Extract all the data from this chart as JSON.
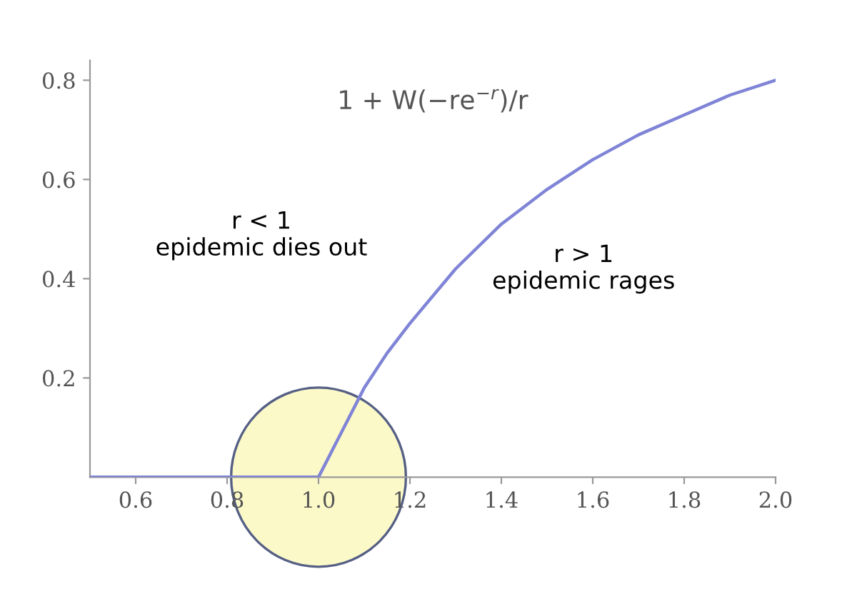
{
  "chart_data": {
    "type": "line",
    "xlim": [
      0.5,
      2.0
    ],
    "ylim": [
      0,
      0.84
    ],
    "xticks": [
      {
        "value": 0.6,
        "label": "0.6"
      },
      {
        "value": 0.8,
        "label": "0.8"
      },
      {
        "value": 1.0,
        "label": "1.0"
      },
      {
        "value": 1.2,
        "label": "1.2"
      },
      {
        "value": 1.4,
        "label": "1.4"
      },
      {
        "value": 1.6,
        "label": "1.6"
      },
      {
        "value": 1.8,
        "label": "1.8"
      },
      {
        "value": 2.0,
        "label": "2.0"
      }
    ],
    "yticks": [
      0.2,
      0.4,
      0.6,
      0.8
    ],
    "series": [
      {
        "color": "#7f84d6",
        "x": [
          0.5,
          0.6,
          0.7,
          0.8,
          0.9,
          1.0,
          1.05,
          1.1,
          1.15,
          1.2,
          1.3,
          1.4,
          1.5,
          1.6,
          1.7,
          1.8,
          1.9,
          2.0
        ],
        "values": [
          0,
          0,
          0,
          0,
          0,
          0,
          0.09,
          0.18,
          0.25,
          0.31,
          0.42,
          0.51,
          0.58,
          0.64,
          0.69,
          0.73,
          0.77,
          0.8
        ]
      }
    ],
    "annotations": [
      "1 + W(−re$^{−r}$)/r",
      "r < 1\nepidemic dies out",
      "r > 1\nepidemic rages"
    ],
    "grid": false,
    "marker": "none",
    "line_style": "solid"
  }
}
